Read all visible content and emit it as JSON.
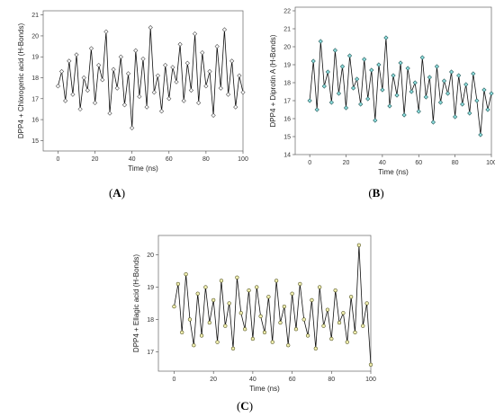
{
  "chart_data": [
    {
      "type": "line",
      "panel_label": "(A)",
      "panel_letter": "A",
      "xlabel": "Time (ns)",
      "ylabel": "DPP4 + Chlorogenic acid (H-Bonds)",
      "xlim": [
        -8,
        100
      ],
      "ylim": [
        14.5,
        21.2
      ],
      "xticks": [
        0,
        20,
        40,
        60,
        80,
        100
      ],
      "yticks": [
        15,
        16,
        17,
        18,
        19,
        20,
        21
      ],
      "marker": "hollow-diamond",
      "line_color": "#111111",
      "marker_fill": "#ffffff",
      "series": [
        {
          "x": [
            0,
            2,
            4,
            6,
            8,
            10,
            12,
            14,
            16,
            18,
            20,
            22,
            24,
            26,
            28,
            30,
            32,
            34,
            36,
            38,
            40,
            42,
            44,
            46,
            48,
            50,
            52,
            54,
            56,
            58,
            60,
            62,
            64,
            66,
            68,
            70,
            72,
            74,
            76,
            78,
            80,
            82,
            84,
            86,
            88,
            90,
            92,
            94,
            96,
            98,
            100
          ],
          "values": [
            17.6,
            18.3,
            16.9,
            18.8,
            17.2,
            19.1,
            16.5,
            18.0,
            17.4,
            19.4,
            16.8,
            18.6,
            17.9,
            20.2,
            16.3,
            18.4,
            17.5,
            19.0,
            16.7,
            18.2,
            15.6,
            19.3,
            17.1,
            18.9,
            16.6,
            20.4,
            17.3,
            18.1,
            16.4,
            18.6,
            17.0,
            18.5,
            17.8,
            19.6,
            16.9,
            18.7,
            17.4,
            20.1,
            16.8,
            19.2,
            17.6,
            18.3,
            16.2,
            19.5,
            17.5,
            20.3,
            17.2,
            18.8,
            16.6,
            18.1,
            17.3
          ]
        }
      ]
    },
    {
      "type": "line",
      "panel_label": "(B)",
      "panel_letter": "B",
      "xlabel": "Time (ns)",
      "ylabel": "DPP4 + Diprotin A (H-Bonds)",
      "xlim": [
        -8,
        100
      ],
      "ylim": [
        14,
        22.2
      ],
      "xticks": [
        0,
        20,
        40,
        60,
        80,
        100
      ],
      "yticks": [
        14,
        15,
        16,
        17,
        18,
        19,
        20,
        21,
        22
      ],
      "marker": "filled-diamond",
      "line_color": "#111111",
      "marker_fill": "#8fe0e0",
      "series": [
        {
          "x": [
            0,
            2,
            4,
            6,
            8,
            10,
            12,
            14,
            16,
            18,
            20,
            22,
            24,
            26,
            28,
            30,
            32,
            34,
            36,
            38,
            40,
            42,
            44,
            46,
            48,
            50,
            52,
            54,
            56,
            58,
            60,
            62,
            64,
            66,
            68,
            70,
            72,
            74,
            76,
            78,
            80,
            82,
            84,
            86,
            88,
            90,
            92,
            94,
            96,
            98,
            100
          ],
          "values": [
            17.0,
            19.2,
            16.5,
            20.3,
            17.8,
            18.6,
            16.9,
            19.8,
            17.4,
            18.9,
            16.6,
            19.5,
            17.7,
            18.2,
            16.8,
            19.3,
            17.1,
            18.7,
            15.9,
            19.0,
            17.6,
            20.5,
            16.7,
            18.4,
            17.3,
            19.1,
            16.2,
            18.8,
            17.5,
            18.0,
            16.4,
            19.4,
            17.2,
            18.3,
            15.8,
            18.9,
            16.9,
            18.1,
            17.4,
            18.6,
            16.1,
            18.4,
            16.8,
            17.9,
            16.3,
            18.5,
            17.0,
            15.1,
            17.6,
            16.5,
            17.4
          ]
        }
      ]
    },
    {
      "type": "line",
      "panel_label": "(C)",
      "panel_letter": "C",
      "xlabel": "Time (ns)",
      "ylabel": "DPP4 + Ellagic acid (H-Bonds)",
      "xlim": [
        -8,
        100
      ],
      "ylim": [
        16.4,
        20.6
      ],
      "xticks": [
        0,
        20,
        40,
        60,
        80,
        100
      ],
      "yticks": [
        17,
        18,
        19,
        20
      ],
      "marker": "filled-circle",
      "line_color": "#111111",
      "marker_fill": "#f0eeb0",
      "series": [
        {
          "x": [
            0,
            2,
            4,
            6,
            8,
            10,
            12,
            14,
            16,
            18,
            20,
            22,
            24,
            26,
            28,
            30,
            32,
            34,
            36,
            38,
            40,
            42,
            44,
            46,
            48,
            50,
            52,
            54,
            56,
            58,
            60,
            62,
            64,
            66,
            68,
            70,
            72,
            74,
            76,
            78,
            80,
            82,
            84,
            86,
            88,
            90,
            92,
            94,
            96,
            98,
            100
          ],
          "values": [
            18.4,
            19.1,
            17.6,
            19.4,
            18.0,
            17.2,
            18.8,
            17.5,
            19.0,
            17.9,
            18.6,
            17.3,
            19.2,
            17.8,
            18.5,
            17.1,
            19.3,
            18.2,
            17.7,
            18.9,
            17.4,
            19.0,
            18.1,
            17.6,
            18.7,
            17.3,
            19.2,
            17.9,
            18.4,
            17.2,
            18.8,
            17.7,
            19.1,
            18.0,
            17.5,
            18.6,
            17.1,
            19.0,
            17.8,
            18.3,
            17.4,
            18.9,
            17.9,
            18.2,
            17.3,
            18.7,
            17.6,
            20.3,
            17.8,
            18.5,
            16.6
          ]
        }
      ]
    }
  ]
}
